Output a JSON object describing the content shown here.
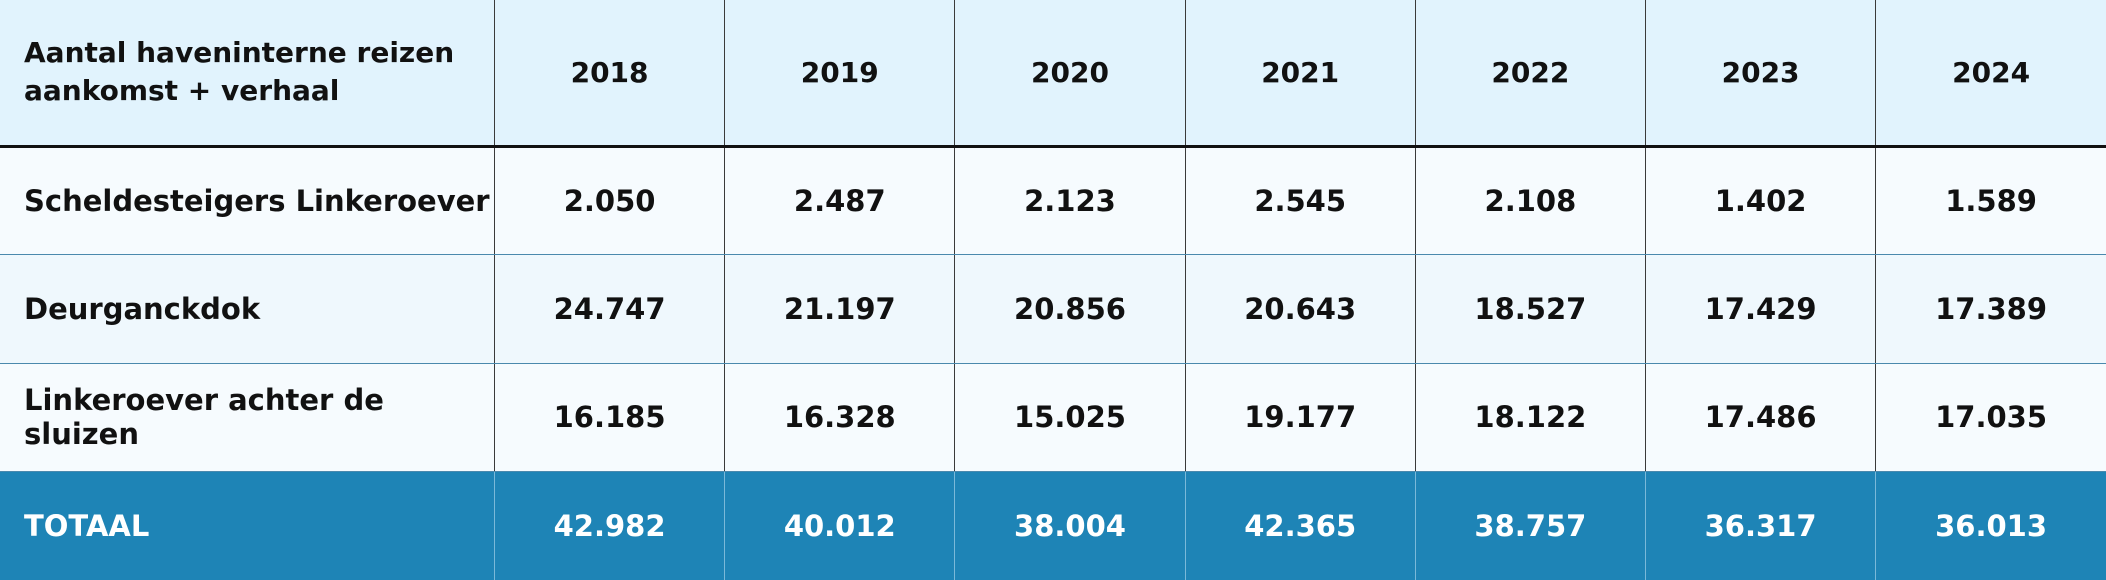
{
  "table": {
    "header": {
      "corner_line1": "Aantal haveninterne reizen",
      "corner_line2": "aankomst + verhaal",
      "years": [
        "2018",
        "2019",
        "2020",
        "2021",
        "2022",
        "2023",
        "2024"
      ]
    },
    "rows": [
      {
        "label": "Scheldesteigers Linkeroever",
        "values": [
          "2.050",
          "2.487",
          "2.123",
          "2.545",
          "2.108",
          "1.402",
          "1.589"
        ]
      },
      {
        "label": "Deurganckdok",
        "values": [
          "24.747",
          "21.197",
          "20.856",
          "20.643",
          "18.527",
          "17.429",
          "17.389"
        ]
      },
      {
        "label": "Linkeroever achter de sluizen",
        "values": [
          "16.185",
          "16.328",
          "15.025",
          "19.177",
          "18.122",
          "17.486",
          "17.035"
        ]
      }
    ],
    "total": {
      "label": "TOTAAL",
      "values": [
        "42.982",
        "40.012",
        "38.004",
        "42.365",
        "38.757",
        "36.317",
        "36.013"
      ]
    }
  },
  "colors": {
    "header_bg": "#e1f3fd",
    "total_bg": "#1e84b6",
    "row_divider": "#4a89ad"
  }
}
